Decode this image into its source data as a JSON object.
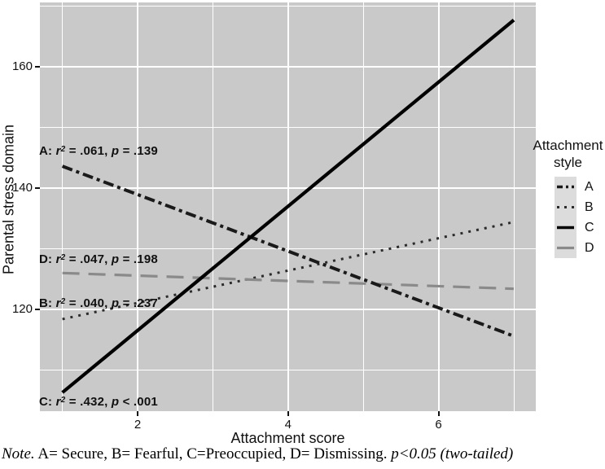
{
  "colors": {
    "panel_bg": "#c9c9c9",
    "gridline": "#ffffff",
    "legend_key_bg": "#dcdcdc",
    "line_black": "#1a1a1a",
    "line_gray": "#8a8a8a",
    "text": "#111111"
  },
  "chart_data": {
    "type": "line",
    "title": "",
    "xlabel": "Attachment score",
    "ylabel": "Parental stress domain",
    "xlim": [
      0.7,
      7.3
    ],
    "ylim": [
      103,
      171
    ],
    "x_ticks": [
      2,
      4,
      6
    ],
    "x_minor": [
      1,
      3,
      5,
      7
    ],
    "y_ticks": [
      120,
      140,
      160
    ],
    "y_minor": [
      110,
      130,
      150,
      170
    ],
    "grid": "white major and minor gridlines on gray panel",
    "legend_position": "right",
    "series": [
      {
        "name": "B",
        "style": "dotted",
        "color": "#2b2b2b",
        "width": 3,
        "x": [
          1,
          7
        ],
        "y": [
          118.4,
          134.4
        ],
        "r2": ".040",
        "p": "= .237"
      },
      {
        "name": "D",
        "style": "long-dash",
        "color": "#8a8a8a",
        "width": 3.2,
        "x": [
          1,
          7
        ],
        "y": [
          126.0,
          123.4
        ],
        "r2": ".047",
        "p": "= .198"
      },
      {
        "name": "A",
        "style": "dash-dot",
        "color": "#1a1a1a",
        "width": 4,
        "x": [
          1,
          7
        ],
        "y": [
          143.6,
          115.6
        ],
        "r2": ".061",
        "p": "= .139"
      },
      {
        "name": "C",
        "style": "solid",
        "color": "#000000",
        "width": 4.2,
        "x": [
          1,
          7
        ],
        "y": [
          106.3,
          167.7
        ],
        "r2": ".432",
        "p": "< .001"
      }
    ]
  },
  "symbols": {
    "r": "r",
    "sup": "2",
    "p": "p"
  },
  "annotations": [
    {
      "prefix": "A: ",
      "mid": " = .061, ",
      "tail": " = .139"
    },
    {
      "prefix": "D: ",
      "mid": " = .047, ",
      "tail": " = .198"
    },
    {
      "prefix": "B: ",
      "mid": " = .040, ",
      "tail": " = .237"
    },
    {
      "prefix": "C: ",
      "mid": " = .432, ",
      "tail": " < .001"
    }
  ],
  "y_axis": {
    "title": "Parental stress domain",
    "tick_labels": [
      "160",
      "140",
      "120"
    ]
  },
  "x_axis": {
    "title": "Attachment score",
    "tick_labels": [
      "2",
      "4",
      "6"
    ]
  },
  "legend": {
    "title_line1": "Attachment",
    "title_line2": "style",
    "items": [
      {
        "label": "A",
        "series": "A"
      },
      {
        "label": "B",
        "series": "B"
      },
      {
        "label": "C",
        "series": "C"
      },
      {
        "label": "D",
        "series": "D"
      }
    ]
  },
  "note": {
    "lead": "Note.",
    "body": " A= Secure, B= Fearful, C=Preoccupied, D= Dismissing. ",
    "tail": "p<0.05 (two-tailed)"
  }
}
